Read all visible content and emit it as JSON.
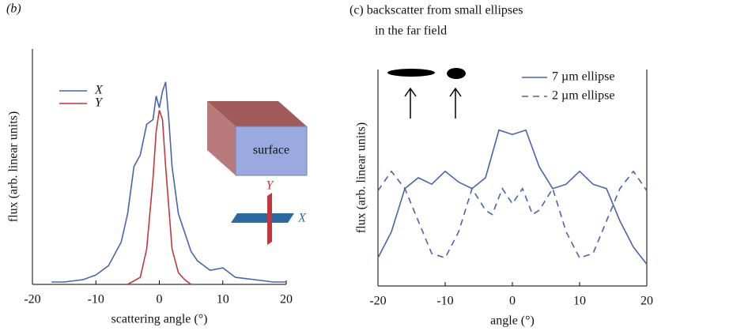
{
  "chart_data": [
    {
      "type": "line",
      "panel_label": "(b)",
      "xlabel": "scattering angle (°)",
      "ylabel": "flux (arb. linear units)",
      "xlim": [
        -20,
        20
      ],
      "xticks": [
        -20,
        -10,
        0,
        10,
        20
      ],
      "ylim": [
        0,
        1
      ],
      "annotations": [
        "surface",
        "Y",
        "X"
      ],
      "series": [
        {
          "name": "X",
          "color": "#4a62b0",
          "style": "solid",
          "x": [
            -17,
            -15,
            -12,
            -10,
            -8,
            -6,
            -5,
            -4,
            -3,
            -2,
            -1,
            -0.5,
            0,
            0.5,
            1,
            1.5,
            2,
            3,
            4,
            5,
            6,
            8,
            10,
            12,
            15,
            18,
            20
          ],
          "values": [
            0.01,
            0.01,
            0.02,
            0.04,
            0.08,
            0.18,
            0.3,
            0.5,
            0.55,
            0.68,
            0.7,
            0.8,
            0.75,
            0.82,
            0.86,
            0.7,
            0.5,
            0.3,
            0.22,
            0.14,
            0.1,
            0.06,
            0.07,
            0.03,
            0.02,
            0.01,
            0.01
          ]
        },
        {
          "name": "Y",
          "color": "#c4373c",
          "style": "solid",
          "x": [
            -5,
            -3,
            -2,
            -1,
            -0.5,
            0,
            0.5,
            1,
            2,
            3,
            4,
            5
          ],
          "values": [
            0,
            0.03,
            0.15,
            0.45,
            0.65,
            0.74,
            0.7,
            0.5,
            0.15,
            0.05,
            0.02,
            0
          ]
        }
      ]
    },
    {
      "type": "line",
      "title": [
        "(c) backscatter from small ellipses",
        "in the far field"
      ],
      "xlabel": "angle (°)",
      "ylabel": "flux (arb. linear units)",
      "xlim": [
        -20,
        20
      ],
      "xticks": [
        -20,
        -10,
        0,
        10,
        20
      ],
      "ylim": [
        0,
        1
      ],
      "series": [
        {
          "name": "7 µm ellipse",
          "color": "#4a62b0",
          "style": "solid",
          "x": [
            -20,
            -18,
            -16,
            -14,
            -12,
            -10,
            -8,
            -6,
            -4,
            -2,
            0,
            2,
            4,
            6,
            8,
            10,
            12,
            14,
            16,
            18,
            20
          ],
          "values": [
            0.13,
            0.25,
            0.45,
            0.5,
            0.47,
            0.53,
            0.48,
            0.45,
            0.5,
            0.72,
            0.7,
            0.72,
            0.55,
            0.45,
            0.47,
            0.53,
            0.47,
            0.45,
            0.3,
            0.18,
            0.1
          ]
        },
        {
          "name": "2 µm ellipse",
          "color": "#4a62b0",
          "style": "dashed",
          "x": [
            -20,
            -18,
            -16,
            -14,
            -12,
            -10,
            -8,
            -6,
            -4,
            -3,
            -1.5,
            0,
            1.5,
            3,
            4,
            6,
            8,
            10,
            12,
            14,
            16,
            18,
            20
          ],
          "values": [
            0.44,
            0.53,
            0.45,
            0.3,
            0.15,
            0.13,
            0.25,
            0.45,
            0.35,
            0.33,
            0.45,
            0.38,
            0.45,
            0.33,
            0.35,
            0.45,
            0.25,
            0.13,
            0.15,
            0.3,
            0.45,
            0.53,
            0.44
          ]
        }
      ]
    }
  ]
}
